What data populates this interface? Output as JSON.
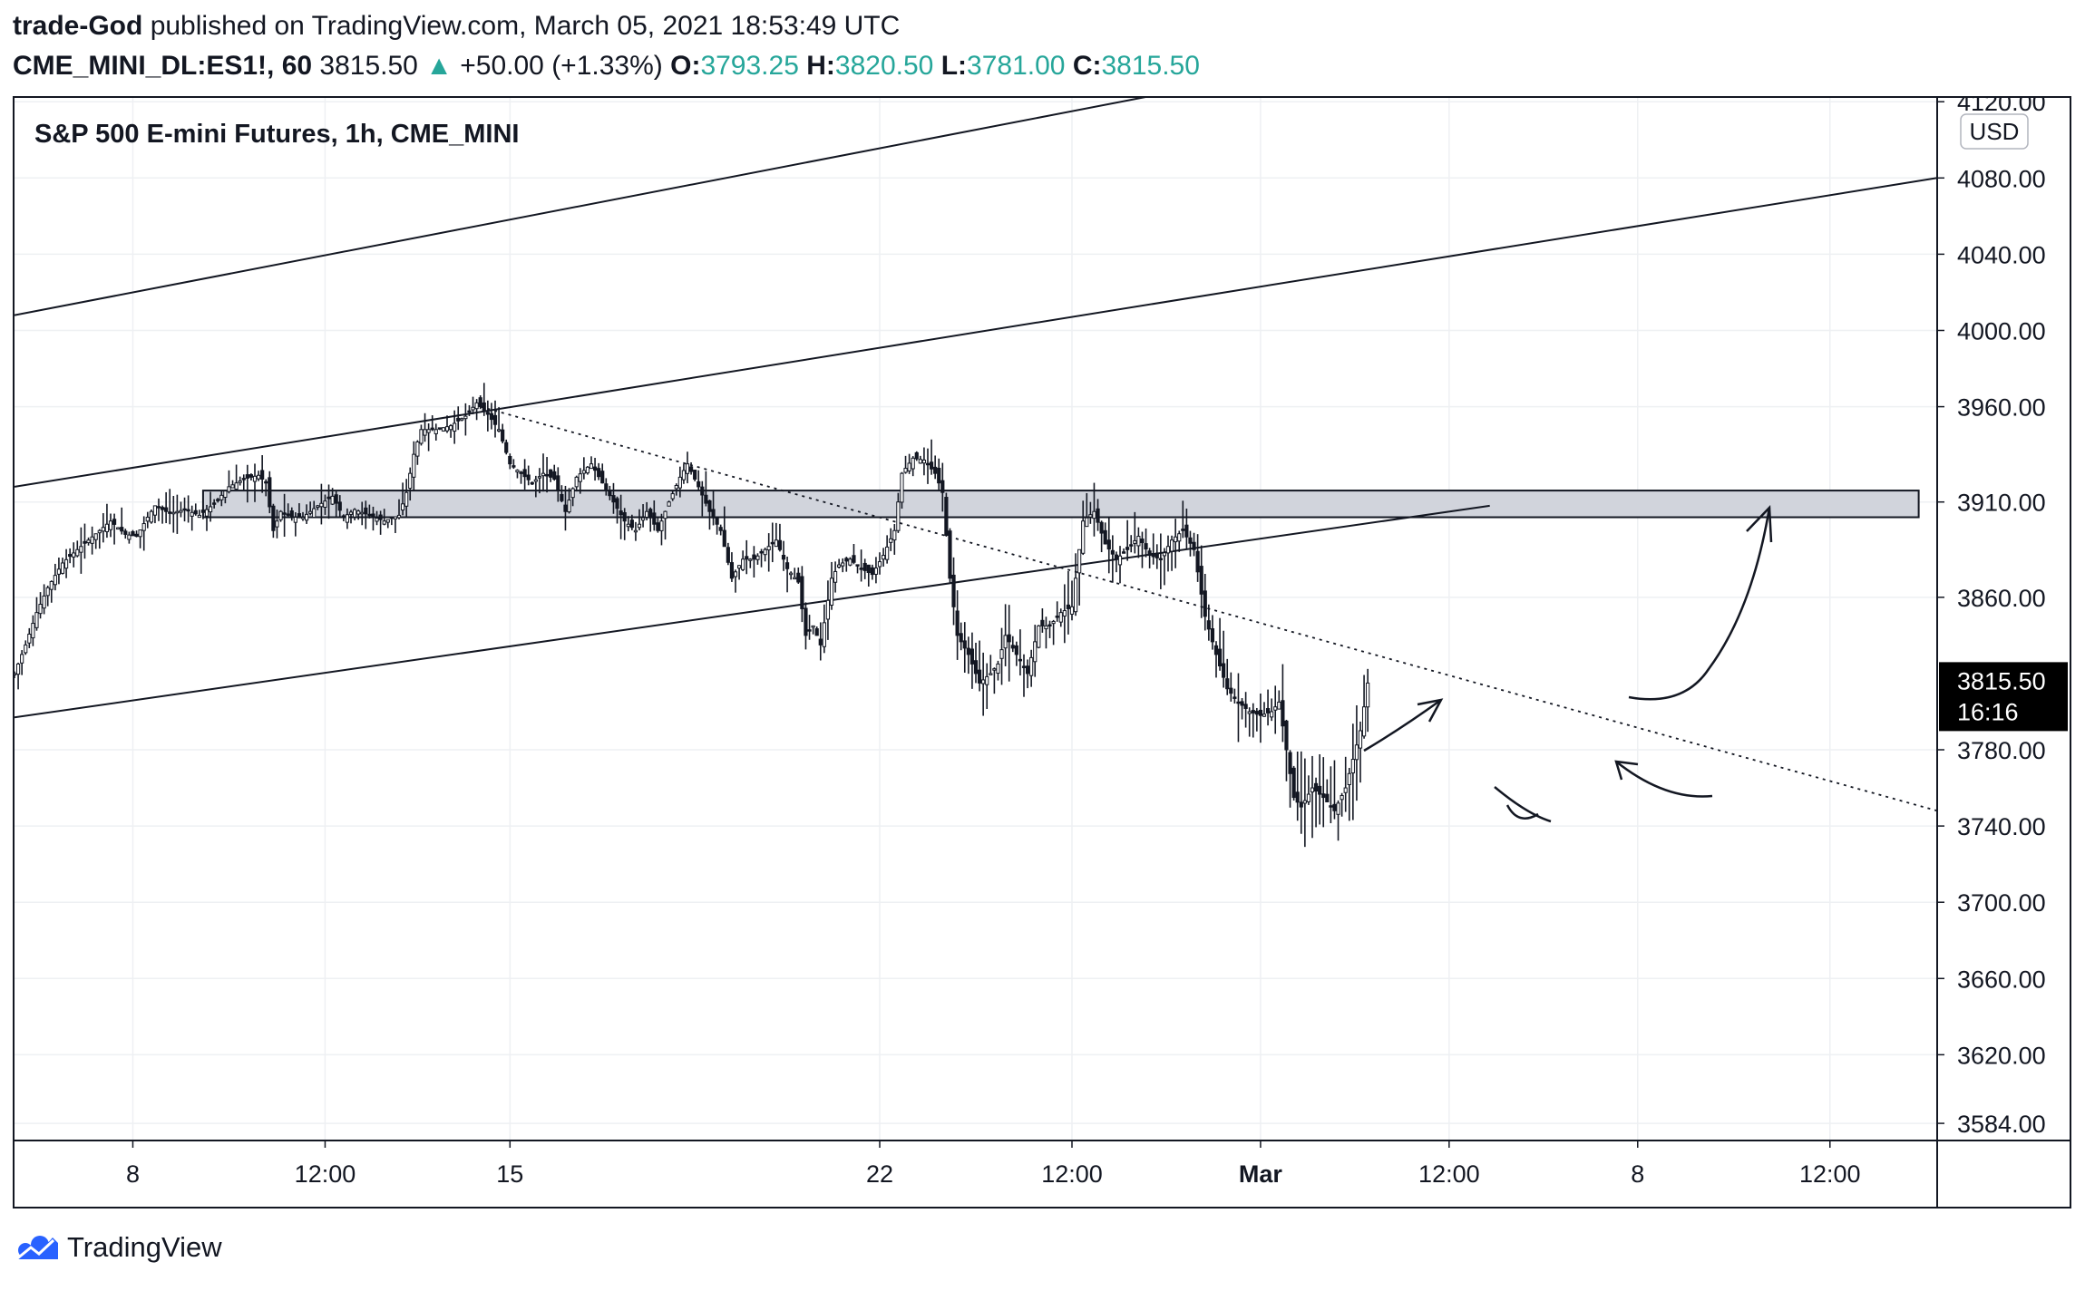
{
  "header": {
    "user": "trade-God",
    "published_text": "published on TradingView.com, March 05, 2021 18:53:49 UTC",
    "symbol": "CME_MINI_DL:ES1!, 60",
    "price": "3815.50",
    "change_arrow": "▲",
    "change": "+50.00 (+1.33%)",
    "open_label": "O:",
    "open": "3793.25",
    "high_label": "H:",
    "high": "3820.50",
    "low_label": "L:",
    "low": "3781.00",
    "close_label": "C:",
    "close": "3815.50",
    "accent_color": "#26a69a"
  },
  "footer": {
    "brand": "TradingView",
    "logo_icon": "tradingview-cloud-icon",
    "logo_color": "#2962ff"
  },
  "chart_data": {
    "type": "candlestick",
    "title": "S&P 500 E-mini Futures, 1h, CME_MINI",
    "currency": "USD",
    "y_tick_labels": [
      "4120.00",
      "4080.00",
      "4040.00",
      "4000.00",
      "3960.00",
      "3910.00",
      "3860.00",
      "3780.00",
      "3740.00",
      "3700.00",
      "3660.00",
      "3620.00",
      "3584.00"
    ],
    "y_ticks": [
      4120,
      4080,
      4040,
      4000,
      3960,
      3910,
      3860,
      3780,
      3740,
      3700,
      3660,
      3620,
      3584
    ],
    "ylim": [
      3575,
      4122
    ],
    "x_tick_labels": [
      "8",
      "12:00",
      "15",
      "22",
      "12:00",
      "Mar",
      "12:00",
      "8",
      "12:00"
    ],
    "last_price_label": "3815.50",
    "last_price": 3815.5,
    "countdown_label": "16:16",
    "grid": true,
    "price_path": [
      [
        0,
        3820
      ],
      [
        3,
        3835
      ],
      [
        6,
        3852
      ],
      [
        9,
        3865
      ],
      [
        13,
        3878
      ],
      [
        17,
        3885
      ],
      [
        20,
        3890
      ],
      [
        23,
        3895
      ],
      [
        26,
        3900
      ],
      [
        30,
        3893
      ],
      [
        33,
        3892
      ],
      [
        36,
        3902
      ],
      [
        38,
        3908
      ],
      [
        42,
        3904
      ],
      [
        46,
        3906
      ],
      [
        50,
        3903
      ],
      [
        54,
        3909
      ],
      [
        58,
        3918
      ],
      [
        62,
        3922
      ],
      [
        66,
        3924
      ],
      [
        68,
        3920
      ],
      [
        70,
        3895
      ],
      [
        72,
        3905
      ],
      [
        75,
        3902
      ],
      [
        78,
        3902
      ],
      [
        82,
        3908
      ],
      [
        86,
        3913
      ],
      [
        89,
        3902
      ],
      [
        92,
        3906
      ],
      [
        96,
        3903
      ],
      [
        100,
        3900
      ],
      [
        104,
        3903
      ],
      [
        106,
        3915
      ],
      [
        108,
        3935
      ],
      [
        110,
        3948
      ],
      [
        114,
        3948
      ],
      [
        118,
        3950
      ],
      [
        122,
        3955
      ],
      [
        125,
        3962
      ],
      [
        128,
        3956
      ],
      [
        131,
        3948
      ],
      [
        134,
        3930
      ],
      [
        137,
        3925
      ],
      [
        140,
        3920
      ],
      [
        143,
        3925
      ],
      [
        146,
        3922
      ],
      [
        149,
        3905
      ],
      [
        152,
        3923
      ],
      [
        156,
        3930
      ],
      [
        159,
        3920
      ],
      [
        162,
        3910
      ],
      [
        165,
        3900
      ],
      [
        168,
        3895
      ],
      [
        171,
        3905
      ],
      [
        174,
        3895
      ],
      [
        177,
        3910
      ],
      [
        180,
        3923
      ],
      [
        182,
        3930
      ],
      [
        185,
        3918
      ],
      [
        188,
        3905
      ],
      [
        191,
        3895
      ],
      [
        194,
        3870
      ],
      [
        197,
        3880
      ],
      [
        200,
        3880
      ],
      [
        203,
        3885
      ],
      [
        206,
        3890
      ],
      [
        209,
        3875
      ],
      [
        212,
        3868
      ],
      [
        214,
        3840
      ],
      [
        216,
        3845
      ],
      [
        218,
        3835
      ],
      [
        221,
        3870
      ],
      [
        223,
        3877
      ],
      [
        226,
        3880
      ],
      [
        229,
        3875
      ],
      [
        232,
        3872
      ],
      [
        235,
        3882
      ],
      [
        238,
        3895
      ],
      [
        240,
        3925
      ],
      [
        243,
        3933
      ],
      [
        246,
        3932
      ],
      [
        249,
        3925
      ],
      [
        251,
        3915
      ],
      [
        253,
        3870
      ],
      [
        255,
        3840
      ],
      [
        258,
        3830
      ],
      [
        261,
        3815
      ],
      [
        264,
        3820
      ],
      [
        266,
        3825
      ],
      [
        268,
        3840
      ],
      [
        271,
        3830
      ],
      [
        274,
        3820
      ],
      [
        277,
        3845
      ],
      [
        280,
        3845
      ],
      [
        283,
        3852
      ],
      [
        286,
        3855
      ],
      [
        289,
        3900
      ],
      [
        292,
        3905
      ],
      [
        295,
        3888
      ],
      [
        298,
        3880
      ],
      [
        301,
        3885
      ],
      [
        304,
        3892
      ],
      [
        307,
        3882
      ],
      [
        310,
        3880
      ],
      [
        313,
        3890
      ],
      [
        316,
        3895
      ],
      [
        319,
        3885
      ],
      [
        322,
        3850
      ],
      [
        325,
        3830
      ],
      [
        328,
        3812
      ],
      [
        331,
        3805
      ],
      [
        334,
        3800
      ],
      [
        337,
        3798
      ],
      [
        340,
        3800
      ],
      [
        342,
        3805
      ],
      [
        344,
        3780
      ],
      [
        346,
        3755
      ],
      [
        348,
        3750
      ],
      [
        351,
        3760
      ],
      [
        354,
        3755
      ],
      [
        357,
        3748
      ],
      [
        360,
        3760
      ],
      [
        362,
        3775
      ],
      [
        364,
        3790
      ],
      [
        366,
        3815
      ]
    ],
    "resistance_zone": [
      3902,
      3916
    ],
    "annotations": [
      {
        "type": "channel-line",
        "from": [
          0,
          4008
        ],
        "to": [
          318,
          4127
        ]
      },
      {
        "type": "channel-line",
        "from": [
          0,
          3918
        ],
        "to": [
          520,
          4080
        ]
      },
      {
        "type": "channel-line",
        "from": [
          0,
          3797
        ],
        "to": [
          399,
          3908
        ]
      },
      {
        "type": "dotted-trendline",
        "from": [
          126,
          3960
        ],
        "to": [
          520,
          3748
        ]
      }
    ]
  }
}
